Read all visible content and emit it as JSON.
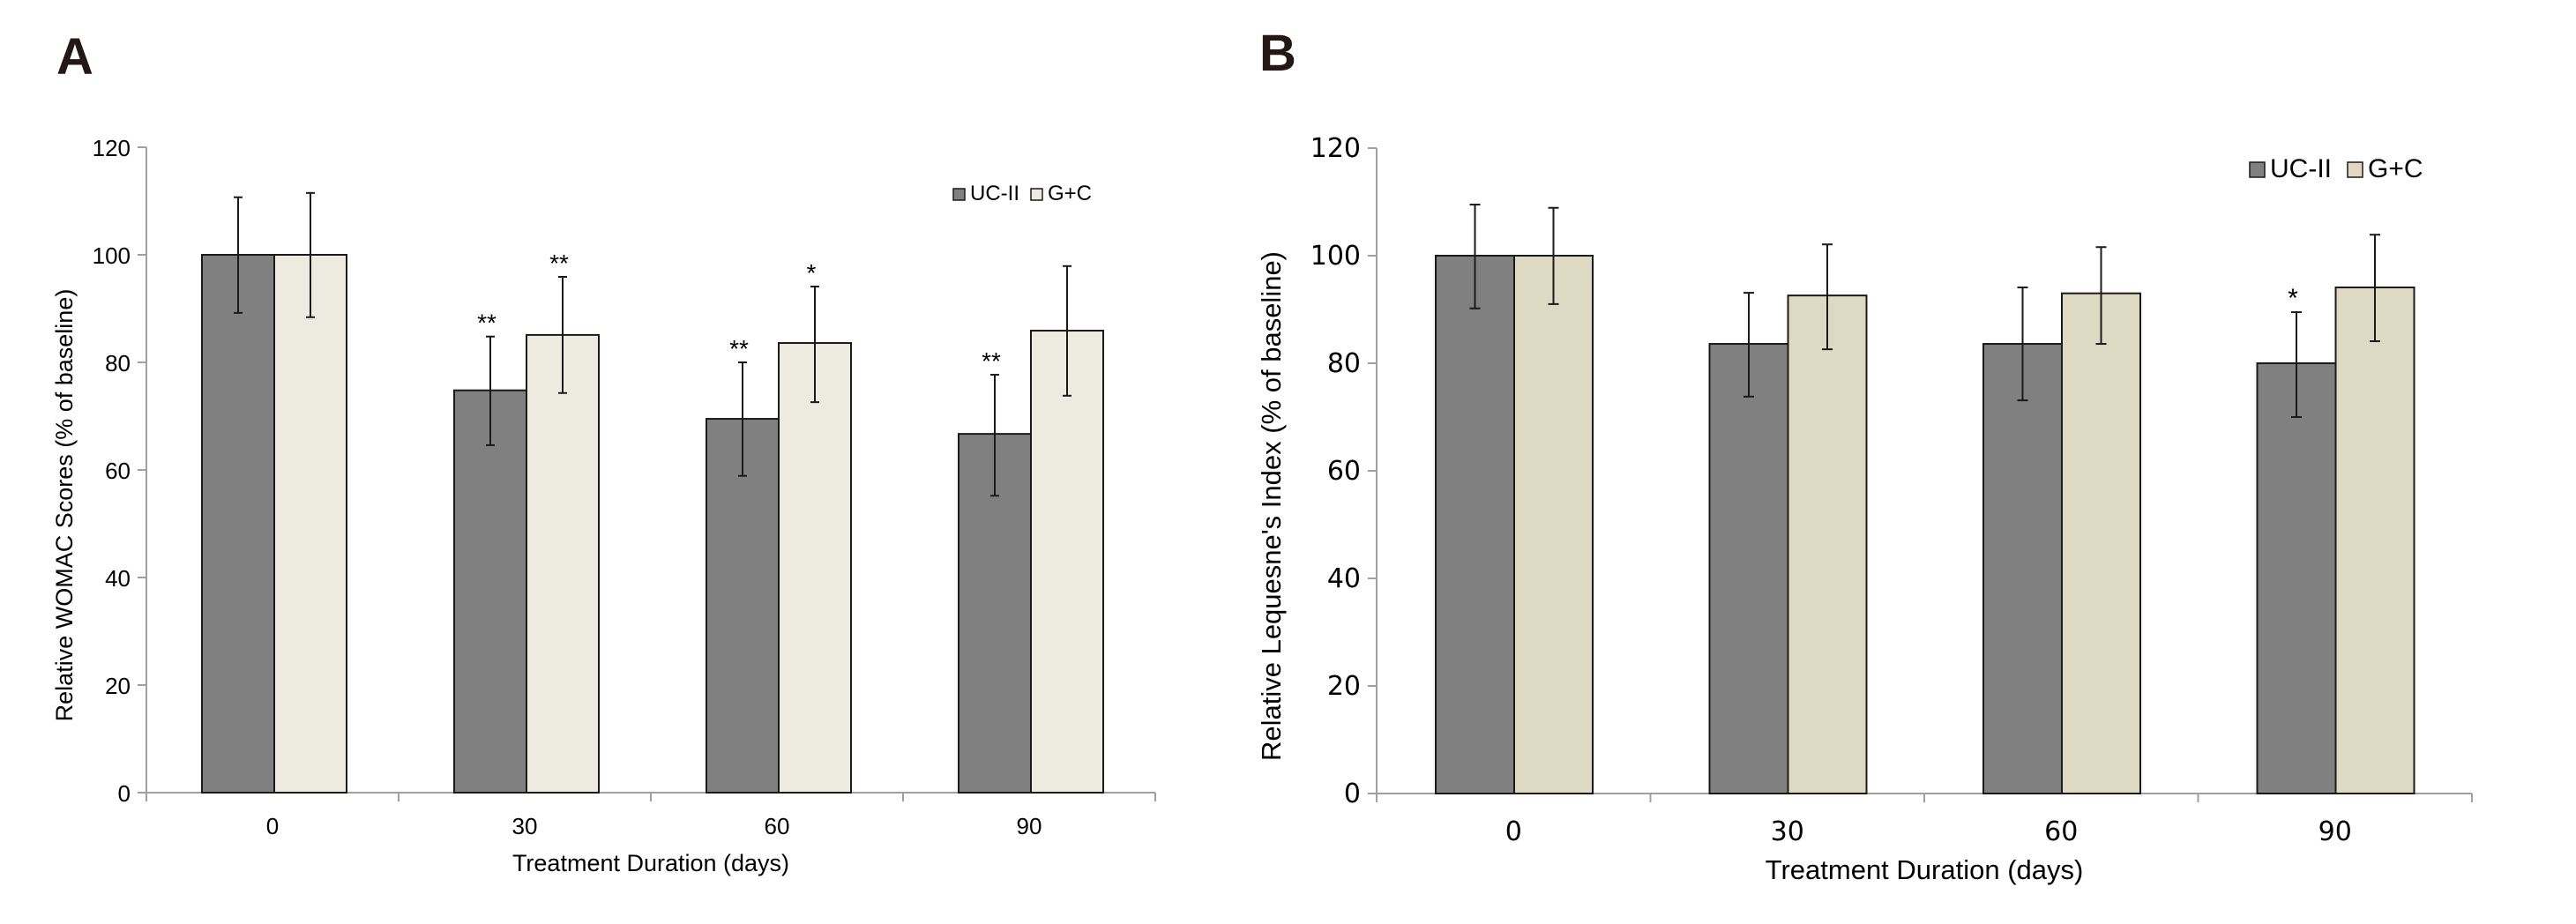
{
  "chart_data": [
    {
      "panel": "A",
      "type": "bar",
      "title": "",
      "xlabel": "Treatment Duration (days)",
      "ylabel": "Relative WOMAC Scores (% of baseline)",
      "ylim": [
        0,
        120
      ],
      "yticks": [
        0,
        20,
        40,
        60,
        80,
        100,
        120
      ],
      "categories": [
        "0",
        "30",
        "60",
        "90"
      ],
      "grid": false,
      "legend_position": "top-right",
      "series": [
        {
          "name": "UC-II",
          "color": "#808080",
          "values": [
            100,
            74.8,
            69.5,
            66.7
          ],
          "error_upper": [
            110.7,
            84.8,
            80.0,
            77.7
          ],
          "error_lower": [
            89.2,
            64.6,
            58.9,
            55.2
          ],
          "significance": [
            "",
            "**",
            "**",
            "**"
          ]
        },
        {
          "name": "G+C",
          "color": "#EDEBE0",
          "values": [
            100,
            85.1,
            83.6,
            85.9
          ],
          "error_upper": [
            111.5,
            95.9,
            94.1,
            97.9
          ],
          "error_lower": [
            88.4,
            74.3,
            72.6,
            73.8
          ],
          "significance": [
            "",
            "**",
            "*",
            ""
          ]
        }
      ]
    },
    {
      "panel": "B",
      "type": "bar",
      "title": "",
      "xlabel": "Treatment Duration (days)",
      "ylabel": "Relative Lequesne's Index (% of baseline)",
      "ylim": [
        0,
        120
      ],
      "yticks": [
        0,
        20,
        40,
        60,
        80,
        100,
        120
      ],
      "categories": [
        "0",
        "30",
        "60",
        "90"
      ],
      "grid": false,
      "legend_position": "top-right",
      "series": [
        {
          "name": "UC-II",
          "color": "#808080",
          "values": [
            100,
            83.6,
            83.6,
            80.0
          ],
          "error_upper": [
            109.5,
            93.1,
            94.1,
            89.5
          ],
          "error_lower": [
            90.2,
            73.8,
            73.1,
            70.0
          ],
          "significance": [
            "",
            "",
            "",
            "*"
          ]
        },
        {
          "name": "G+C",
          "color": "#DDD9C3",
          "values": [
            100,
            92.6,
            93.0,
            94.1
          ],
          "error_upper": [
            108.9,
            102.1,
            101.6,
            103.9
          ],
          "error_lower": [
            91.0,
            82.6,
            83.6,
            84.1
          ],
          "significance": [
            "",
            "",
            "",
            ""
          ]
        }
      ]
    }
  ],
  "panel_labels": [
    "A",
    "B"
  ]
}
